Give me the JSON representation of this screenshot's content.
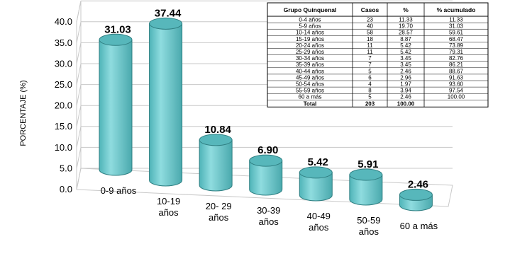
{
  "chart_data": {
    "type": "bar",
    "ylabel": "PORCENTAJE (%)",
    "ylim": [
      0,
      40
    ],
    "yticks": [
      "0.0",
      "5.0",
      "10.0",
      "15.0",
      "20.0",
      "25.0",
      "30.0",
      "35.0",
      "40.0"
    ],
    "categories": [
      [
        "0-9 años"
      ],
      [
        "10-19",
        "años"
      ],
      [
        "20- 29",
        "años"
      ],
      [
        "30-39",
        "años"
      ],
      [
        "40-49",
        "años"
      ],
      [
        "50-59",
        "años"
      ],
      [
        "60 a más"
      ]
    ],
    "values": [
      31.03,
      37.44,
      10.84,
      6.9,
      5.42,
      5.91,
      2.46
    ],
    "labels": [
      "31.03",
      "37.44",
      "10.84",
      "6.90",
      "5.42",
      "5.91",
      "2.46"
    ],
    "bar_color": "#7fd3d6",
    "grid": true
  },
  "table": {
    "headers": [
      "Grupo Quinquenal",
      "Casos",
      "%",
      "% acumulado"
    ],
    "rows": [
      [
        "0-4 años",
        "23",
        "11.33",
        "11.33"
      ],
      [
        "5-9 años",
        "40",
        "19.70",
        "31.03"
      ],
      [
        "10-14 años",
        "58",
        "28.57",
        "59.61"
      ],
      [
        "15-19 años",
        "18",
        "8.87",
        "68.47"
      ],
      [
        "20-24 años",
        "11",
        "5.42",
        "73.89"
      ],
      [
        "25-29 años",
        "11",
        "5.42",
        "79.31"
      ],
      [
        "30-34 años",
        "7",
        "3.45",
        "82.76"
      ],
      [
        "35-39 años",
        "7",
        "3.45",
        "86.21"
      ],
      [
        "40-44 años",
        "5",
        "2.46",
        "88.67"
      ],
      [
        "45-49 años",
        "6",
        "2.96",
        "91.63"
      ],
      [
        "50-54 años",
        "4",
        "1.97",
        "93.60"
      ],
      [
        "55-59 años",
        "8",
        "3.94",
        "97.54"
      ],
      [
        "60 a más",
        "5",
        "2.46",
        "100.00"
      ]
    ],
    "total": [
      "Total",
      "203",
      "100.00",
      ""
    ]
  }
}
